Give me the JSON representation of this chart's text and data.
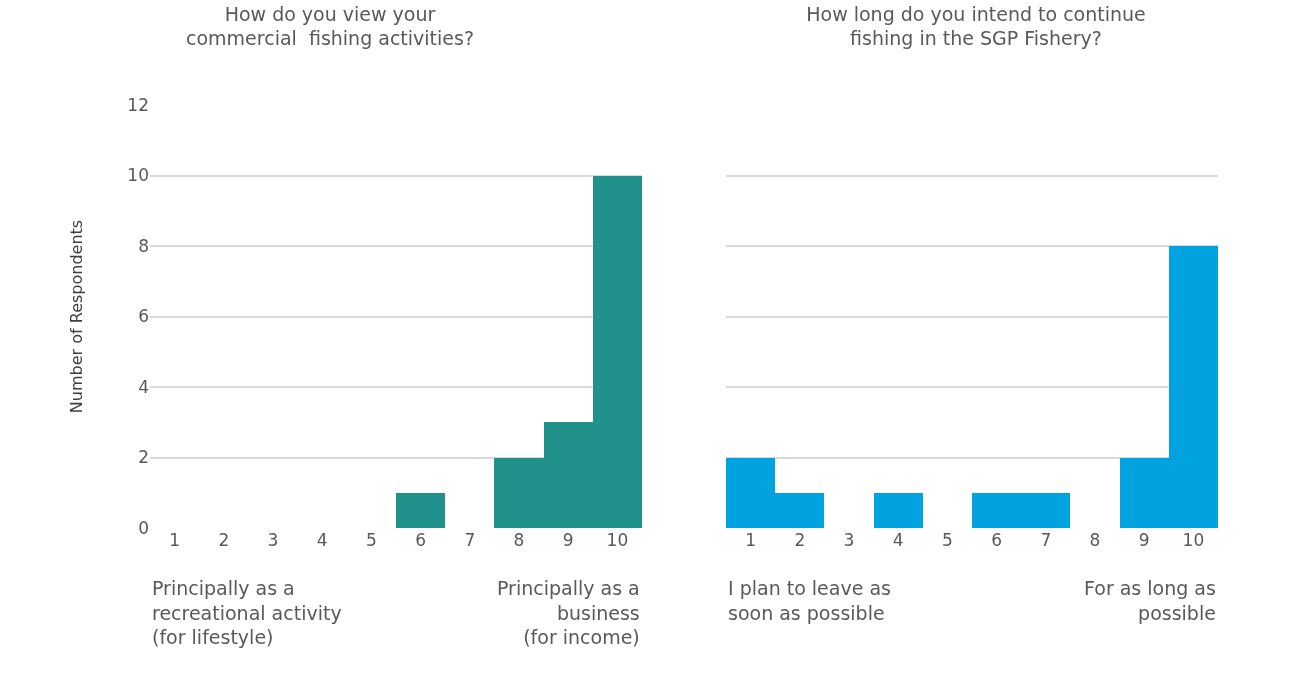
{
  "chart_data": [
    {
      "type": "bar",
      "title": "How do you view your\ncommercial  fishing activities?",
      "ylabel": "Number of Respondents",
      "categories": [
        "1",
        "2",
        "3",
        "4",
        "5",
        "6",
        "7",
        "8",
        "9",
        "10"
      ],
      "values": [
        0,
        0,
        0,
        0,
        0,
        1,
        0,
        2,
        3,
        10
      ],
      "color": "#21918c",
      "ylim": [
        0,
        12
      ],
      "yticks": [
        0,
        2,
        4,
        6,
        8,
        10,
        12
      ],
      "grid": "y",
      "annotations": [
        "Principally as a\nrecreational activity\n(for lifestyle)",
        "Principally as a\nbusiness\n(for income)"
      ]
    },
    {
      "type": "bar",
      "title": "How long do you intend to continue\nfishing in the SGP Fishery?",
      "categories": [
        "1",
        "2",
        "3",
        "4",
        "5",
        "6",
        "7",
        "8",
        "9",
        "10"
      ],
      "values": [
        2,
        1,
        0,
        1,
        0,
        1,
        1,
        0,
        2,
        8
      ],
      "color": "#00a3e0",
      "ylim": [
        0,
        12
      ],
      "yticks": [
        0,
        2,
        4,
        6,
        8,
        10,
        12
      ],
      "grid": "y",
      "tick_labels": "x",
      "annotations": [
        "I plan to leave as\nsoon as possible",
        "For as long as\npossible"
      ]
    }
  ]
}
